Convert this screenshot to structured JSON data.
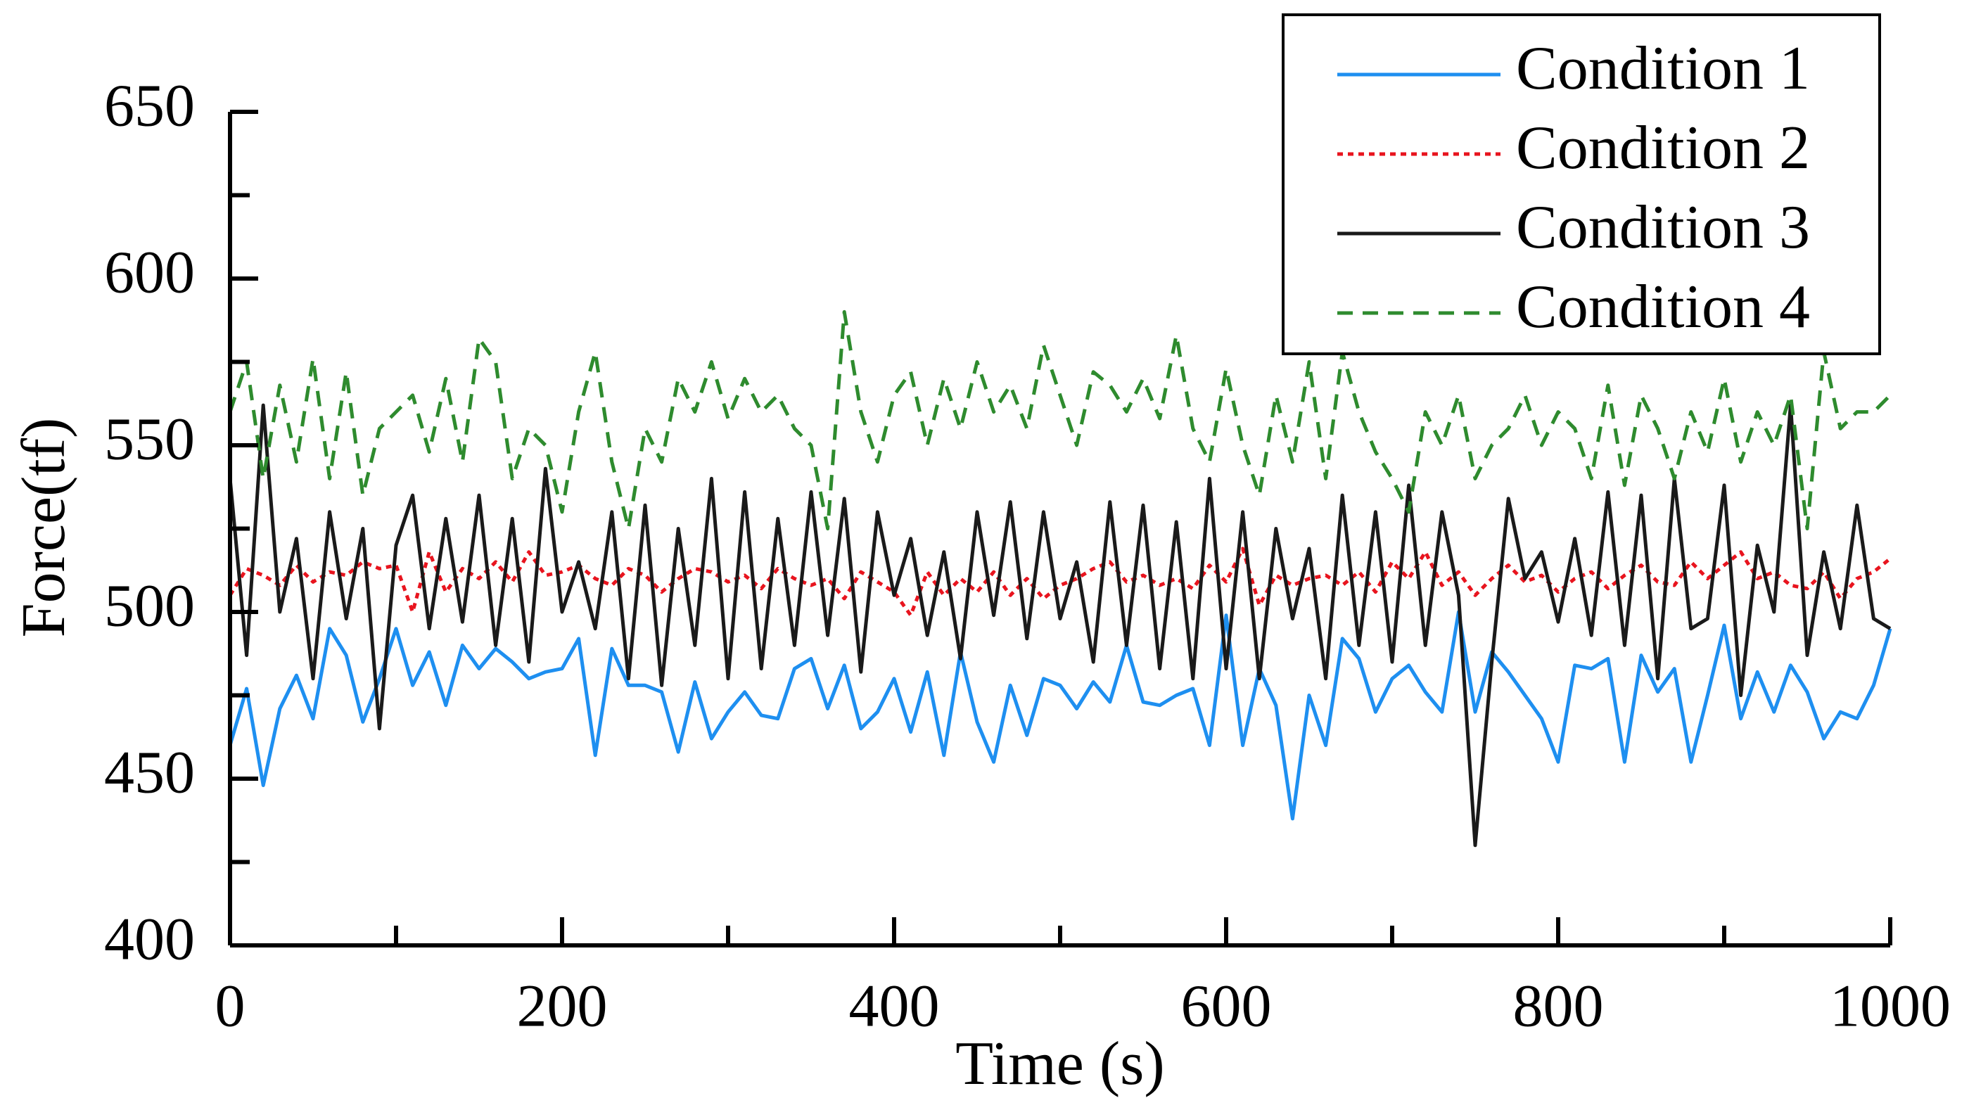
{
  "chart_data": {
    "type": "line",
    "xlabel": "Time (s)",
    "ylabel": "Force(tf)",
    "x": [
      0,
      10,
      20,
      30,
      40,
      50,
      60,
      70,
      80,
      90,
      100,
      110,
      120,
      130,
      140,
      150,
      160,
      170,
      180,
      190,
      200,
      210,
      220,
      230,
      240,
      250,
      260,
      270,
      280,
      290,
      300,
      310,
      320,
      330,
      340,
      350,
      360,
      370,
      380,
      390,
      400,
      410,
      420,
      430,
      440,
      450,
      460,
      470,
      480,
      490,
      500,
      510,
      520,
      530,
      540,
      550,
      560,
      570,
      580,
      590,
      600,
      610,
      620,
      630,
      640,
      650,
      660,
      670,
      680,
      690,
      700,
      710,
      720,
      730,
      740,
      750,
      760,
      770,
      780,
      790,
      800,
      810,
      820,
      830,
      840,
      850,
      860,
      870,
      880,
      890,
      900,
      910,
      920,
      930,
      940,
      950,
      960,
      970,
      980,
      990,
      1000
    ],
    "series": [
      {
        "name": "Condition 1",
        "color": "#1e8ff0",
        "style": "solid",
        "values": [
          460,
          477,
          448,
          471,
          481,
          468,
          495,
          487,
          467,
          480,
          495,
          478,
          488,
          472,
          490,
          483,
          489,
          485,
          480,
          482,
          483,
          492,
          457,
          489,
          478,
          478,
          476,
          458,
          479,
          462,
          470,
          476,
          469,
          468,
          483,
          486,
          471,
          484,
          465,
          470,
          480,
          464,
          482,
          457,
          488,
          467,
          455,
          478,
          463,
          480,
          478,
          471,
          479,
          473,
          490,
          473,
          472,
          475,
          477,
          460,
          499,
          460,
          483,
          472,
          438,
          475,
          460,
          492,
          486,
          470,
          480,
          484,
          476,
          470,
          500,
          470,
          488,
          482,
          475,
          468,
          455,
          484,
          483,
          486,
          455,
          487,
          476,
          483,
          455,
          475,
          496,
          468,
          482,
          470,
          484,
          476,
          462,
          470,
          468,
          478,
          495
        ]
      },
      {
        "name": "Condition 2",
        "color": "#e8141e",
        "style": "dotted",
        "values": [
          505,
          513,
          511,
          508,
          514,
          509,
          512,
          511,
          515,
          513,
          514,
          500,
          518,
          506,
          513,
          510,
          515,
          509,
          518,
          511,
          512,
          514,
          510,
          508,
          513,
          511,
          506,
          510,
          513,
          512,
          509,
          511,
          507,
          513,
          510,
          508,
          510,
          504,
          512,
          509,
          506,
          499,
          512,
          505,
          510,
          506,
          512,
          505,
          510,
          504,
          508,
          510,
          513,
          515,
          509,
          511,
          508,
          510,
          507,
          514,
          509,
          519,
          502,
          511,
          508,
          510,
          511,
          508,
          512,
          506,
          515,
          510,
          518,
          508,
          512,
          505,
          510,
          514,
          509,
          511,
          506,
          510,
          512,
          507,
          511,
          514,
          509,
          508,
          515,
          510,
          514,
          518,
          510,
          512,
          508,
          507,
          512,
          504,
          510,
          512,
          516
        ]
      },
      {
        "name": "Condition 3",
        "color": "#1a1a1a",
        "style": "solid",
        "values": [
          540,
          487,
          562,
          500,
          522,
          480,
          530,
          498,
          525,
          465,
          520,
          535,
          495,
          528,
          497,
          535,
          490,
          528,
          485,
          543,
          500,
          515,
          495,
          530,
          480,
          532,
          478,
          525,
          490,
          540,
          480,
          536,
          483,
          528,
          490,
          536,
          493,
          534,
          482,
          530,
          505,
          522,
          493,
          518,
          486,
          530,
          499,
          533,
          492,
          530,
          498,
          515,
          485,
          533,
          490,
          532,
          483,
          527,
          480,
          540,
          483,
          530,
          480,
          525,
          498,
          519,
          480,
          535,
          490,
          530,
          485,
          538,
          490,
          530,
          505,
          430,
          485,
          534,
          510,
          518,
          497,
          522,
          493,
          536,
          490,
          535,
          480,
          540,
          495,
          498,
          538,
          475,
          520,
          500,
          562,
          487,
          518,
          495,
          532,
          498,
          495
        ]
      },
      {
        "name": "Condition 4",
        "color": "#2e8b2e",
        "style": "dashed",
        "values": [
          560,
          575,
          540,
          568,
          545,
          576,
          540,
          572,
          535,
          555,
          560,
          565,
          548,
          570,
          545,
          582,
          575,
          540,
          555,
          550,
          530,
          560,
          578,
          545,
          525,
          555,
          545,
          570,
          560,
          575,
          558,
          570,
          560,
          565,
          555,
          550,
          525,
          590,
          560,
          545,
          565,
          572,
          550,
          570,
          555,
          575,
          560,
          568,
          555,
          580,
          565,
          550,
          572,
          568,
          560,
          570,
          558,
          583,
          555,
          545,
          573,
          550,
          535,
          565,
          545,
          575,
          540,
          578,
          560,
          548,
          540,
          530,
          560,
          550,
          565,
          540,
          550,
          555,
          565,
          550,
          560,
          555,
          540,
          568,
          538,
          565,
          555,
          540,
          560,
          548,
          570,
          545,
          560,
          550,
          565,
          525,
          578,
          555,
          560,
          560,
          565
        ]
      }
    ],
    "xlim": [
      0,
      1000
    ],
    "ylim": [
      400,
      650
    ],
    "xticks": [
      0,
      200,
      400,
      600,
      800,
      1000
    ],
    "yticks": [
      400,
      450,
      500,
      550,
      600,
      650
    ],
    "xminor": [
      100,
      300,
      500,
      700,
      900
    ],
    "yminor": [
      425,
      475,
      525,
      575,
      625
    ],
    "legend": "upper right",
    "grid": false
  }
}
